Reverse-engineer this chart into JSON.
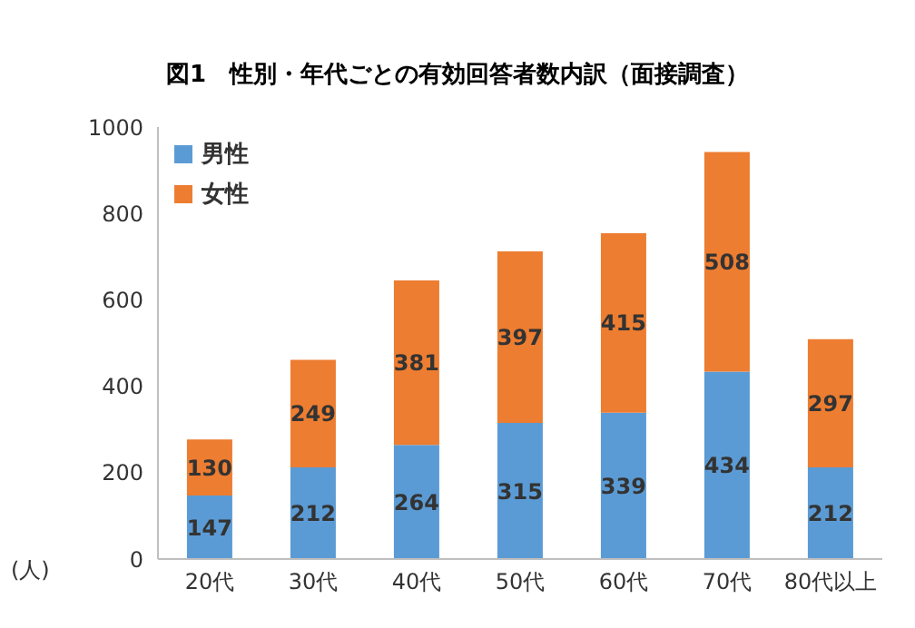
{
  "chart_data": {
    "type": "bar",
    "title": "図1　性別・年代ごとの有効回答者数内訳（面接調査）",
    "ylabel": "(人)",
    "categories": [
      "20代",
      "30代",
      "40代",
      "50代",
      "60代",
      "70代",
      "80代以上"
    ],
    "series": [
      {
        "name": "男性",
        "color": "#5b9bd5",
        "values": [
          147,
          212,
          264,
          315,
          339,
          434,
          212
        ]
      },
      {
        "name": "女性",
        "color": "#ed7d31",
        "values": [
          130,
          249,
          381,
          397,
          415,
          508,
          297
        ]
      }
    ],
    "stacked": true,
    "ylim": [
      0,
      1000
    ],
    "yticks": [
      0,
      200,
      400,
      600,
      800,
      1000
    ],
    "grid": false,
    "legend": "top left",
    "data_labels": true
  }
}
